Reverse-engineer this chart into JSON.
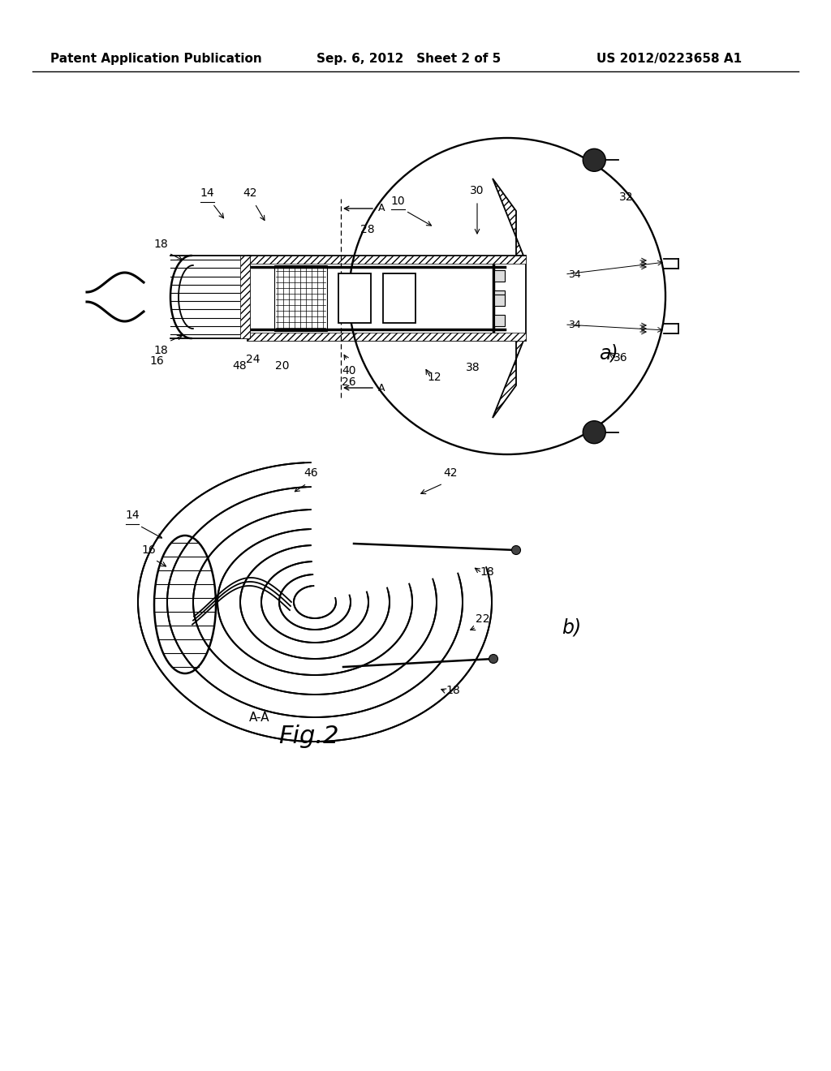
{
  "background_color": "#ffffff",
  "header_left": "Patent Application Publication",
  "header_center": "Sep. 6, 2012   Sheet 2 of 5",
  "header_right": "US 2012/0223658 A1",
  "line_color": "#000000",
  "label_fontsize": 10,
  "fig_label_fontsize": 16,
  "header_fontsize": 11,
  "fig_label_a": "a)",
  "fig_label_b": "b)",
  "fig2_label": "Fig.2",
  "section_label": "A-A"
}
